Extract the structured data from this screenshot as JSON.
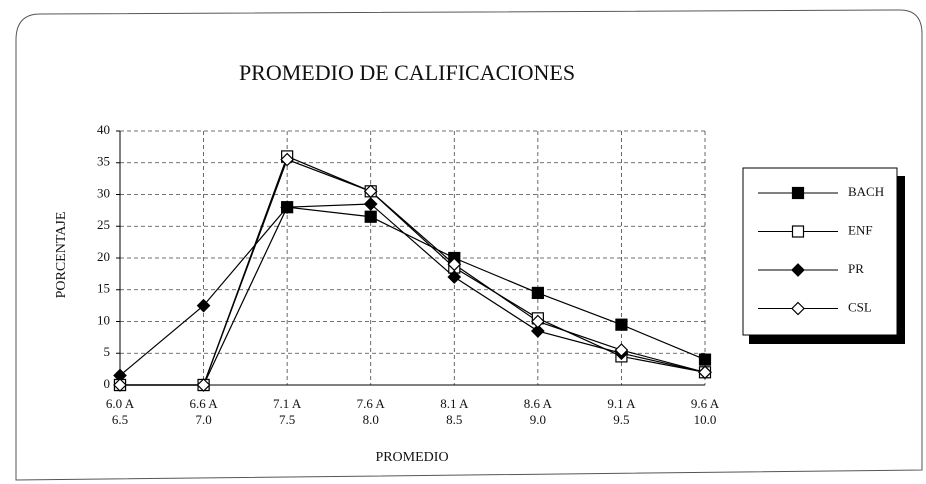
{
  "chart_data": {
    "type": "line",
    "title": "PROMEDIO DE CALIFICACIONES",
    "x_label": "PROMEDIO",
    "y_label": "PORCENTAJE",
    "categories": [
      [
        "6.0 A",
        "6.5"
      ],
      [
        "6.6 A",
        "7.0"
      ],
      [
        "7.1 A",
        "7.5"
      ],
      [
        "7.6 A",
        "8.0"
      ],
      [
        "8.1 A",
        "8.5"
      ],
      [
        "8.6 A",
        "9.0"
      ],
      [
        "9.1 A",
        "9.5"
      ],
      [
        "9.6 A",
        "10.0"
      ]
    ],
    "series": [
      {
        "name": "BACH",
        "color": "#000000",
        "marker": "square",
        "filled": true,
        "values": [
          0,
          0,
          28,
          26.5,
          20,
          14.5,
          9.5,
          4
        ]
      },
      {
        "name": "ENF",
        "color": "#000000",
        "marker": "square",
        "filled": false,
        "values": [
          0,
          0,
          36,
          30.5,
          18.5,
          10.5,
          4.5,
          2
        ]
      },
      {
        "name": "PR",
        "color": "#000000",
        "marker": "diamond",
        "filled": true,
        "values": [
          1.5,
          12.5,
          28,
          28.5,
          17,
          8.5,
          5,
          2
        ]
      },
      {
        "name": "CSL",
        "color": "#000000",
        "marker": "diamond",
        "filled": false,
        "values": [
          0,
          0,
          35.5,
          30.5,
          19,
          10,
          5.5,
          2
        ]
      }
    ],
    "ylim": [
      0,
      40
    ],
    "yticks": [
      0,
      5,
      10,
      15,
      20,
      25,
      30,
      35,
      40
    ],
    "grid": true,
    "legend": "right"
  }
}
